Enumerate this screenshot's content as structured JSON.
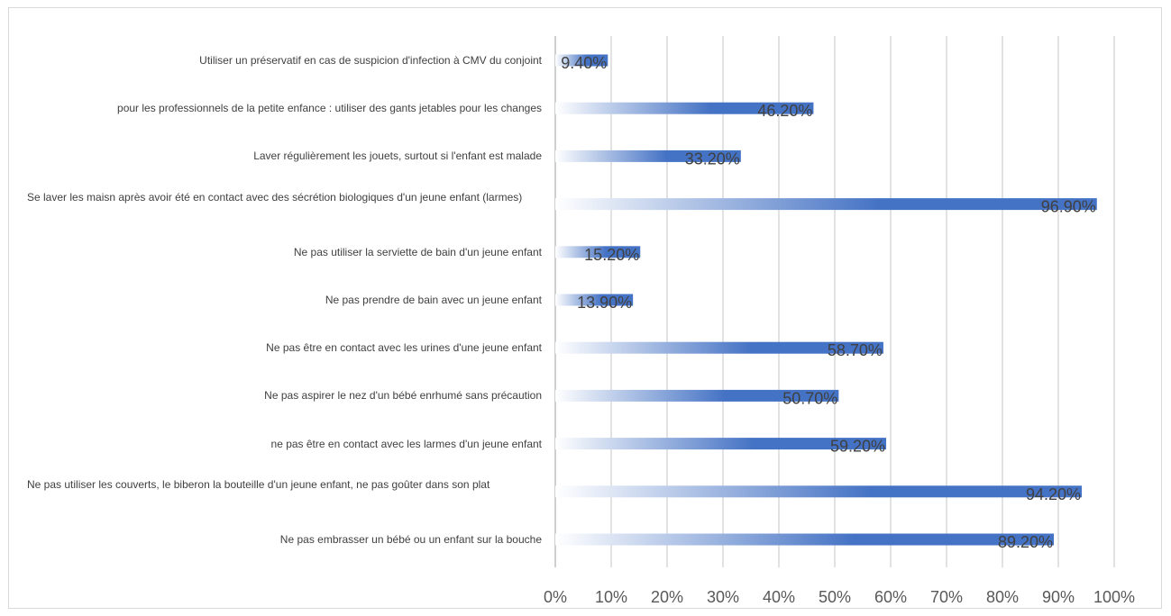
{
  "chart_data": {
    "type": "bar",
    "orientation": "horizontal",
    "categories": [
      "Utiliser un préservatif en cas de suspicion d'infection à CMV du conjoint",
      "pour les professionnels de la petite enfance : utiliser des gants jetables pour les changes",
      "Laver régulièrement les jouets, surtout si l'enfant est malade",
      "Se laver les maisn après avoir été en contact avec des sécrétion biologiques d'un jeune enfant (larmes)",
      "Ne pas utiliser la serviette de bain d'un jeune enfant",
      "Ne pas prendre de bain avec un jeune enfant",
      "Ne pas être en contact avec les urines d'une jeune enfant",
      "Ne pas aspirer le nez d'un bébé enrhumé sans précaution",
      "ne pas être en contact avec les larmes d'un jeune enfant",
      "Ne pas utiliser les couverts, le biberon la bouteille d'un jeune enfant, ne pas goûter dans son plat",
      "Ne pas embrasser un bébé ou un enfant sur la bouche"
    ],
    "values": [
      9.4,
      46.2,
      33.2,
      96.9,
      15.2,
      13.9,
      58.7,
      50.7,
      59.2,
      94.2,
      89.2
    ],
    "data_labels": [
      "9.40%",
      "46.20%",
      "33.20%",
      "96.90%",
      "15.20%",
      "13.90%",
      "58.70%",
      "50.70%",
      "59.20%",
      "94.20%",
      "89.20%"
    ],
    "x_ticks": [
      "0%",
      "10%",
      "20%",
      "30%",
      "40%",
      "50%",
      "60%",
      "70%",
      "80%",
      "90%",
      "100%"
    ],
    "xlim": [
      0,
      100
    ],
    "grid": true,
    "bar_color": "#4472c4",
    "gradient_from": "#ffffff"
  }
}
